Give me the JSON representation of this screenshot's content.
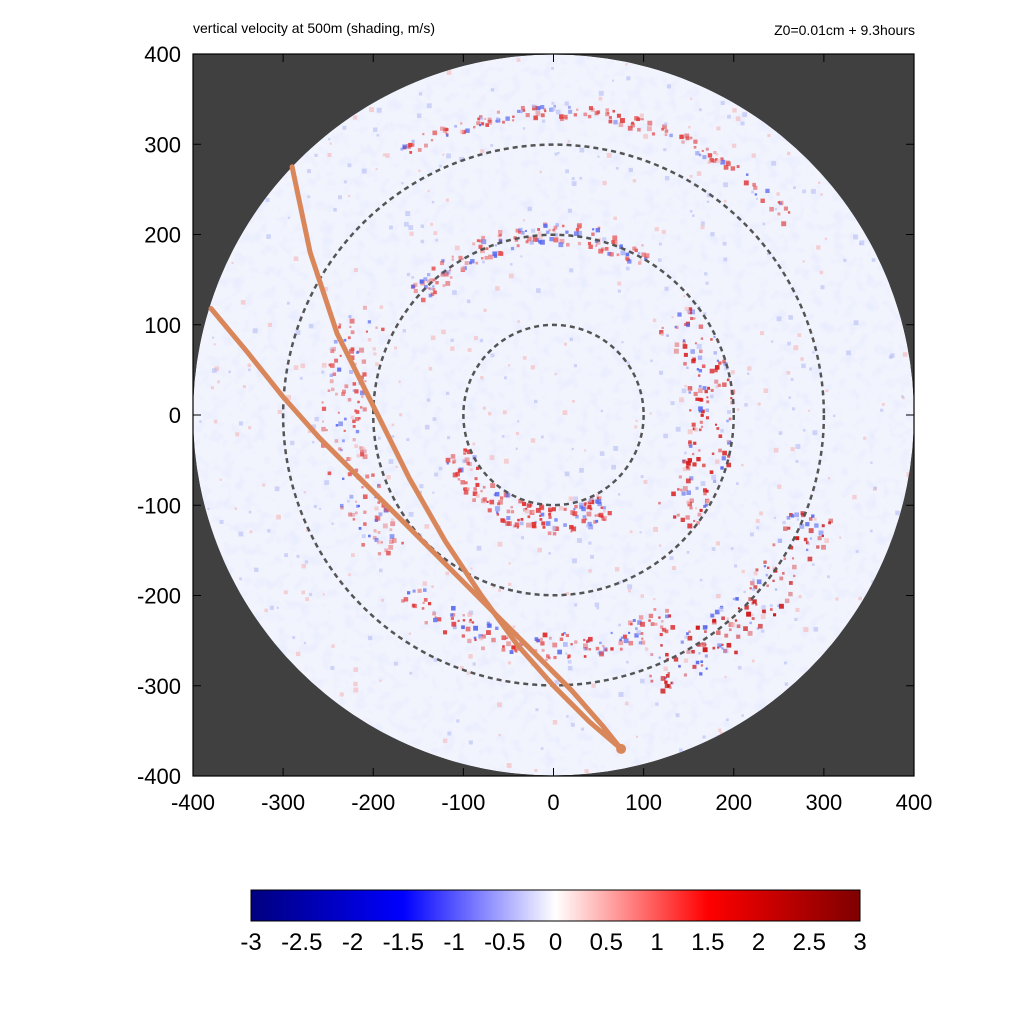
{
  "chart_data": {
    "type": "heatmap",
    "title": "vertical velocity at 500m (shading, m/s)",
    "subtitle": "Z0=0.01cm  + 9.3hours",
    "xlim": [
      -400,
      400
    ],
    "ylim": [
      -400,
      400
    ],
    "x_ticks": [
      -400,
      -300,
      -200,
      -100,
      0,
      100,
      200,
      300,
      400
    ],
    "y_ticks": [
      -400,
      -300,
      -200,
      -100,
      0,
      100,
      200,
      300,
      400
    ],
    "x_tick_labels": [
      "-400",
      "-300",
      "-200",
      "-100",
      "0",
      "100",
      "200",
      "300",
      "400"
    ],
    "y_tick_labels": [
      "-400",
      "-300",
      "-200",
      "-100",
      "0",
      "100",
      "200",
      "300",
      "400"
    ],
    "domain_radius": 400,
    "range_rings": [
      100,
      200,
      300
    ],
    "colorbar": {
      "min": -3,
      "max": 3,
      "ticks": [
        "-3",
        "-2.5",
        "-2",
        "-1.5",
        "-1",
        "-0.5",
        "0",
        "0.5",
        "1",
        "1.5",
        "2",
        "2.5",
        "3"
      ],
      "tick_values": [
        -3,
        -2.5,
        -2,
        -1.5,
        -1,
        -0.5,
        0,
        0.5,
        1,
        1.5,
        2,
        2.5,
        3
      ],
      "colors": [
        "#00007f",
        "#0000ff",
        "#ffffff",
        "#ff0000",
        "#7f0000"
      ]
    },
    "tracks": [
      {
        "x": [
          -290,
          -270,
          -240,
          -200,
          -160,
          -120,
          -80,
          -40,
          0,
          40,
          75
        ],
        "y": [
          275,
          180,
          90,
          10,
          -70,
          -140,
          -200,
          -255,
          -300,
          -340,
          -370
        ]
      },
      {
        "x": [
          -380,
          -340,
          -300,
          -260,
          -220,
          -180,
          -140,
          -100,
          -60,
          -20,
          20,
          55,
          75
        ],
        "y": [
          118,
          70,
          20,
          -25,
          -65,
          -105,
          -145,
          -185,
          -225,
          -265,
          -305,
          -345,
          -370
        ]
      }
    ],
    "features": {
      "background_color": "#404040",
      "ring_color": "#555555",
      "track_color": "#d9875a"
    }
  }
}
